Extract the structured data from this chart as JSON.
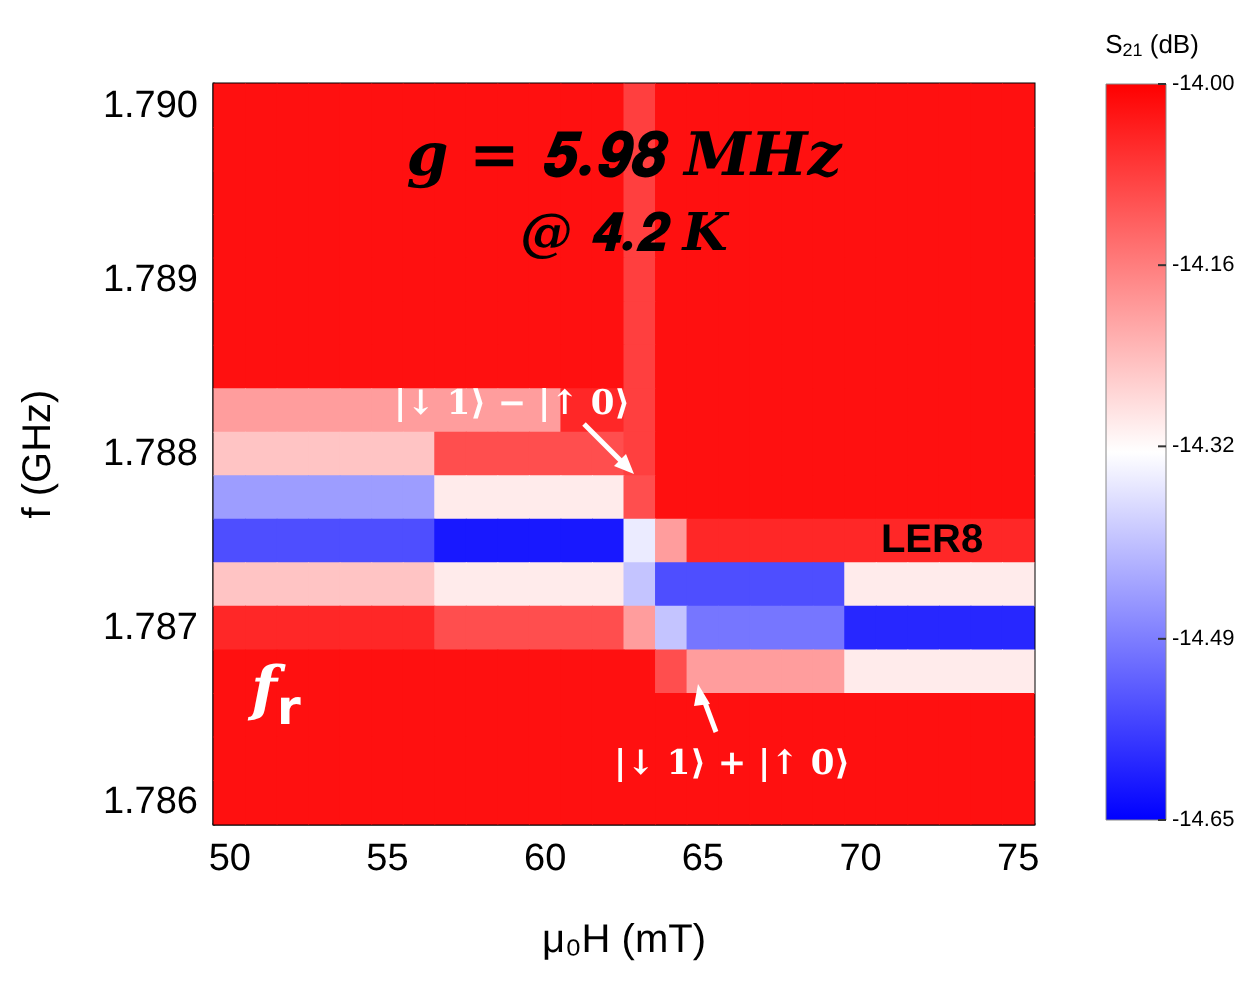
{
  "chart_data": {
    "type": "heatmap",
    "xlabel": "μ₀H (mT)",
    "ylabel": "f (GHz)",
    "clabel": "S$_{21}$ (dB)",
    "categories": [
      "50",
      null,
      null,
      null,
      null,
      "55",
      null,
      null,
      null,
      null,
      "60",
      null,
      null,
      null,
      null,
      "65",
      null,
      null,
      null,
      null,
      "70",
      null,
      null,
      null,
      null,
      "75"
    ],
    "y_categories": [
      "1.790",
      null,
      null,
      null,
      "1.789",
      null,
      null,
      null,
      "1.788",
      null,
      null,
      null,
      "1.787",
      null,
      null,
      null,
      "1.786"
    ],
    "cells": [
      [
        -14.02,
        -14.02,
        -14.02,
        -14.02,
        -14.02,
        -14.02,
        -14.02,
        -14.02,
        -14.02,
        -14.02,
        -14.02,
        -14.02,
        -14.02,
        -14.08,
        -14.02,
        -14.02,
        -14.02,
        -14.02,
        -14.02,
        -14.02,
        -14.02,
        -14.02,
        -14.02,
        -14.02,
        -14.02,
        -14.02
      ],
      [
        -14.02,
        -14.02,
        -14.02,
        -14.02,
        -14.02,
        -14.02,
        -14.02,
        -14.02,
        -14.02,
        -14.02,
        -14.02,
        -14.02,
        -14.02,
        -14.08,
        -14.02,
        -14.02,
        -14.02,
        -14.02,
        -14.02,
        -14.02,
        -14.02,
        -14.02,
        -14.02,
        -14.02,
        -14.02,
        -14.02
      ],
      [
        -14.02,
        -14.02,
        -14.02,
        -14.02,
        -14.02,
        -14.02,
        -14.02,
        -14.02,
        -14.02,
        -14.02,
        -14.02,
        -14.02,
        -14.02,
        -14.08,
        -14.02,
        -14.02,
        -14.02,
        -14.02,
        -14.02,
        -14.02,
        -14.02,
        -14.02,
        -14.02,
        -14.02,
        -14.02,
        -14.02
      ],
      [
        -14.02,
        -14.02,
        -14.02,
        -14.02,
        -14.02,
        -14.02,
        -14.02,
        -14.02,
        -14.02,
        -14.02,
        -14.02,
        -14.02,
        -14.02,
        -14.08,
        -14.02,
        -14.02,
        -14.02,
        -14.02,
        -14.02,
        -14.02,
        -14.02,
        -14.02,
        -14.02,
        -14.02,
        -14.02,
        -14.02
      ],
      [
        -14.02,
        -14.02,
        -14.02,
        -14.02,
        -14.02,
        -14.02,
        -14.02,
        -14.02,
        -14.02,
        -14.02,
        -14.02,
        -14.02,
        -14.02,
        -14.08,
        -14.02,
        -14.02,
        -14.02,
        -14.02,
        -14.02,
        -14.02,
        -14.02,
        -14.02,
        -14.02,
        -14.02,
        -14.02,
        -14.02
      ],
      [
        -14.02,
        -14.02,
        -14.02,
        -14.02,
        -14.02,
        -14.02,
        -14.02,
        -14.02,
        -14.02,
        -14.02,
        -14.02,
        -14.02,
        -14.02,
        -14.08,
        -14.02,
        -14.02,
        -14.02,
        -14.02,
        -14.02,
        -14.02,
        -14.02,
        -14.02,
        -14.02,
        -14.02,
        -14.02,
        -14.02
      ],
      [
        -14.02,
        -14.02,
        -14.02,
        -14.02,
        -14.02,
        -14.02,
        -14.02,
        -14.02,
        -14.02,
        -14.02,
        -14.02,
        -14.02,
        -14.02,
        -14.08,
        -14.02,
        -14.02,
        -14.02,
        -14.02,
        -14.02,
        -14.02,
        -14.02,
        -14.02,
        -14.02,
        -14.02,
        -14.02,
        -14.02
      ],
      [
        -14.2,
        -14.2,
        -14.2,
        -14.2,
        -14.2,
        -14.2,
        -14.2,
        -14.2,
        -14.2,
        -14.2,
        -14.2,
        -14.05,
        -14.05,
        -14.08,
        -14.02,
        -14.02,
        -14.02,
        -14.02,
        -14.02,
        -14.02,
        -14.02,
        -14.02,
        -14.02,
        -14.02,
        -14.02,
        -14.02
      ],
      [
        -14.25,
        -14.25,
        -14.25,
        -14.25,
        -14.25,
        -14.25,
        -14.25,
        -14.1,
        -14.1,
        -14.1,
        -14.1,
        -14.1,
        -14.1,
        -14.08,
        -14.02,
        -14.02,
        -14.02,
        -14.02,
        -14.02,
        -14.02,
        -14.02,
        -14.02,
        -14.02,
        -14.02,
        -14.02,
        -14.02
      ],
      [
        -14.45,
        -14.45,
        -14.45,
        -14.45,
        -14.45,
        -14.45,
        -14.45,
        -14.3,
        -14.3,
        -14.3,
        -14.3,
        -14.3,
        -14.3,
        -14.1,
        -14.02,
        -14.02,
        -14.02,
        -14.02,
        -14.02,
        -14.02,
        -14.02,
        -14.02,
        -14.02,
        -14.02,
        -14.02,
        -14.02
      ],
      [
        -14.55,
        -14.55,
        -14.55,
        -14.55,
        -14.55,
        -14.55,
        -14.55,
        -14.62,
        -14.62,
        -14.62,
        -14.62,
        -14.62,
        -14.62,
        -14.35,
        -14.2,
        -14.05,
        -14.05,
        -14.05,
        -14.05,
        -14.05,
        -14.05,
        -14.05,
        -14.05,
        -14.05,
        -14.05,
        -14.05
      ],
      [
        -14.25,
        -14.25,
        -14.25,
        -14.25,
        -14.25,
        -14.25,
        -14.25,
        -14.3,
        -14.3,
        -14.3,
        -14.3,
        -14.3,
        -14.3,
        -14.4,
        -14.55,
        -14.55,
        -14.55,
        -14.55,
        -14.55,
        -14.55,
        -14.3,
        -14.3,
        -14.3,
        -14.3,
        -14.3,
        -14.3
      ],
      [
        -14.05,
        -14.05,
        -14.05,
        -14.05,
        -14.05,
        -14.05,
        -14.05,
        -14.1,
        -14.1,
        -14.1,
        -14.1,
        -14.1,
        -14.1,
        -14.2,
        -14.4,
        -14.5,
        -14.5,
        -14.5,
        -14.5,
        -14.5,
        -14.6,
        -14.6,
        -14.6,
        -14.6,
        -14.6,
        -14.6
      ],
      [
        -14.02,
        -14.02,
        -14.02,
        -14.02,
        -14.02,
        -14.02,
        -14.02,
        -14.02,
        -14.02,
        -14.02,
        -14.02,
        -14.02,
        -14.02,
        -14.02,
        -14.1,
        -14.2,
        -14.2,
        -14.2,
        -14.2,
        -14.2,
        -14.3,
        -14.3,
        -14.3,
        -14.3,
        -14.3,
        -14.3
      ],
      [
        -14.02,
        -14.02,
        -14.02,
        -14.02,
        -14.02,
        -14.02,
        -14.02,
        -14.02,
        -14.02,
        -14.02,
        -14.02,
        -14.02,
        -14.02,
        -14.02,
        -14.02,
        -14.02,
        -14.02,
        -14.02,
        -14.02,
        -14.02,
        -14.02,
        -14.02,
        -14.02,
        -14.02,
        -14.02,
        -14.02
      ],
      [
        -14.02,
        -14.02,
        -14.02,
        -14.02,
        -14.02,
        -14.02,
        -14.02,
        -14.02,
        -14.02,
        -14.02,
        -14.02,
        -14.02,
        -14.02,
        -14.02,
        -14.02,
        -14.02,
        -14.02,
        -14.02,
        -14.02,
        -14.02,
        -14.02,
        -14.02,
        -14.02,
        -14.02,
        -14.02,
        -14.02
      ],
      [
        -14.02,
        -14.02,
        -14.02,
        -14.02,
        -14.02,
        -14.02,
        -14.02,
        -14.02,
        -14.02,
        -14.02,
        -14.02,
        -14.02,
        -14.02,
        -14.02,
        -14.02,
        -14.02,
        -14.02,
        -14.02,
        -14.02,
        -14.02,
        -14.02,
        -14.02,
        -14.02,
        -14.02,
        -14.02,
        -14.02
      ]
    ],
    "clim": [
      -14.65,
      -14.0
    ],
    "cticks": [
      {
        "value": -14.0,
        "label": "-14.00"
      },
      -14.16,
      -14.32,
      -14.49,
      -14.65
    ],
    "annotations": [
      "𝒈 = 𝟓.𝟗𝟖 𝑴𝑯𝒛",
      "@ 𝟒.𝟐 𝑲",
      "|↓ 𝟏⟩ − |↑ 𝟎⟩",
      "|↓ 𝟏⟩ + |↑ 𝟎⟩",
      "LER8",
      "f$_{r}$"
    ]
  }
}
